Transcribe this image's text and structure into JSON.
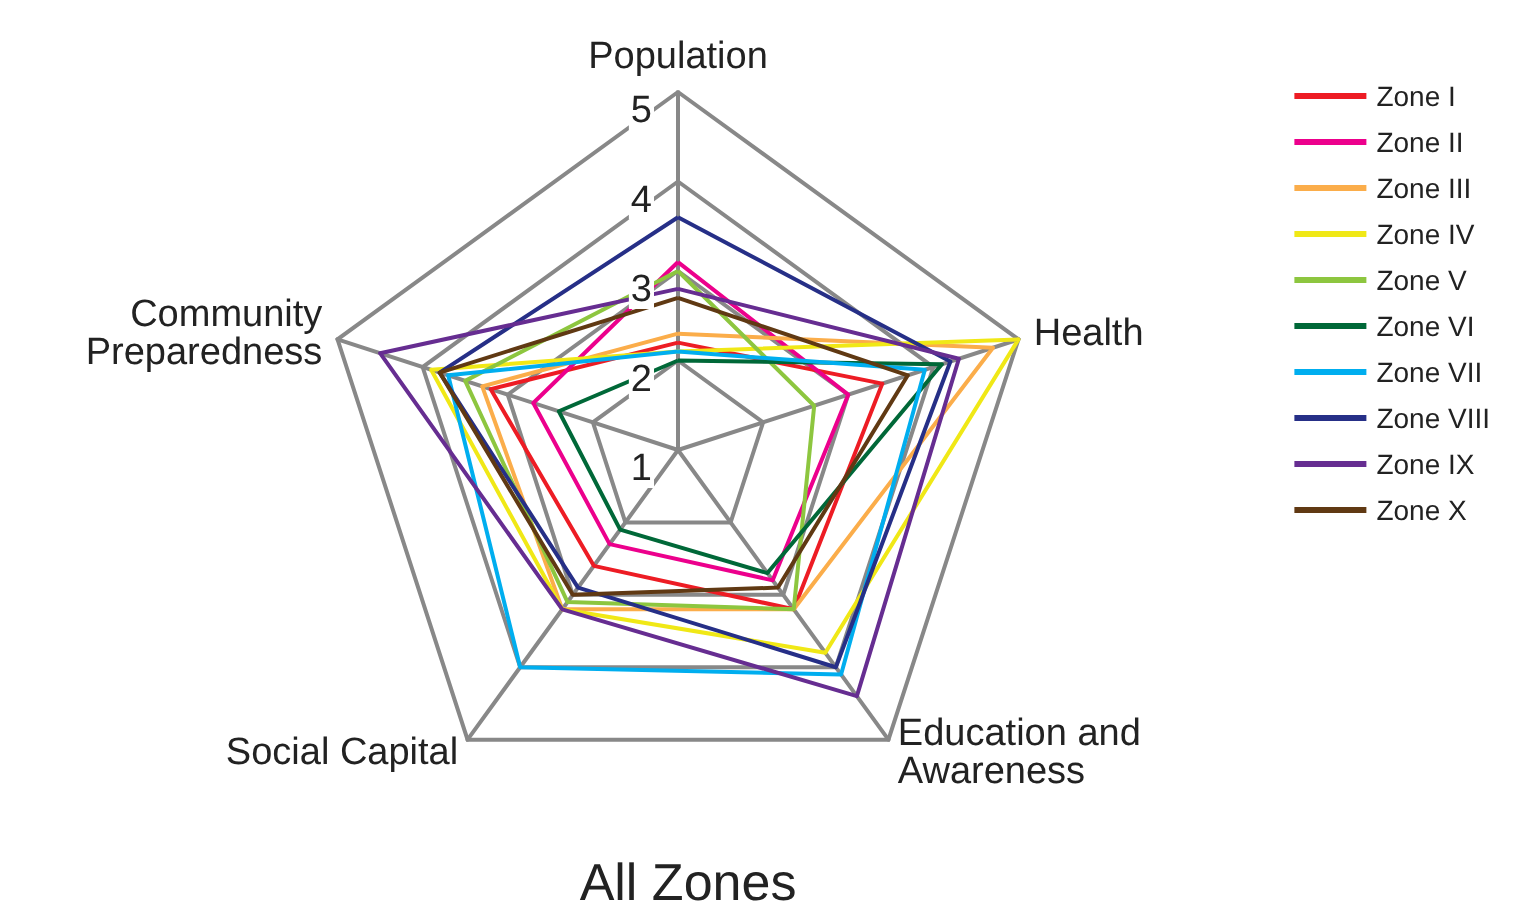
{
  "chart_data": {
    "type": "radar",
    "title": "All Zones",
    "categories": [
      "Population",
      "Health",
      "Education and Awareness",
      "Social Capital",
      "Community Preparedness"
    ],
    "ylim": [
      1,
      5
    ],
    "yticks": [
      1,
      2,
      3,
      4,
      5
    ],
    "legend": "top right",
    "marker": "none",
    "series": [
      {
        "name": "Zone I",
        "color": "#ed1c24",
        "values": [
          2.2,
          3.4,
          3.2,
          2.6,
          3.2
        ]
      },
      {
        "name": "Zone II",
        "color": "#ec008c",
        "values": [
          3.1,
          3.0,
          2.8,
          2.3,
          2.7
        ]
      },
      {
        "name": "Zone III",
        "color": "#fbad4a",
        "values": [
          2.3,
          4.7,
          3.2,
          3.2,
          3.3
        ]
      },
      {
        "name": "Zone IV",
        "color": "#f0e816",
        "values": [
          2.1,
          5.0,
          3.8,
          3.2,
          3.9
        ]
      },
      {
        "name": "Zone V",
        "color": "#8dc63f",
        "values": [
          3.0,
          2.6,
          3.2,
          3.1,
          3.5
        ]
      },
      {
        "name": "Zone VI",
        "color": "#006838",
        "values": [
          2.0,
          4.1,
          2.7,
          2.1,
          2.4
        ]
      },
      {
        "name": "Zone VII",
        "color": "#00aeef",
        "values": [
          2.1,
          3.9,
          4.1,
          4.0,
          3.7
        ]
      },
      {
        "name": "Zone VIII",
        "color": "#262f87",
        "values": [
          3.6,
          4.2,
          4.0,
          2.9,
          3.8
        ]
      },
      {
        "name": "Zone IX",
        "color": "#662d91",
        "values": [
          2.8,
          4.3,
          4.4,
          3.2,
          4.5
        ]
      },
      {
        "name": "Zone X",
        "color": "#603913",
        "values": [
          2.7,
          3.7,
          2.9,
          3.0,
          3.8
        ]
      }
    ]
  }
}
